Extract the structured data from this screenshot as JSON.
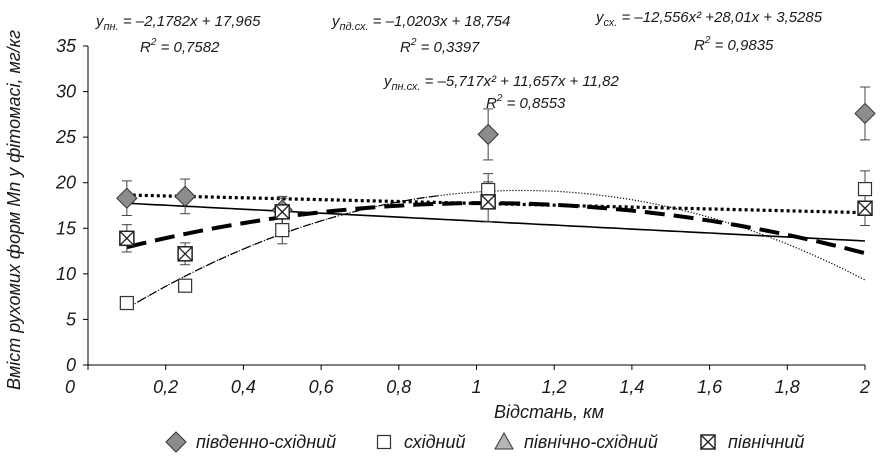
{
  "chart_data": {
    "type": "scatter",
    "xlabel": "Відстань, км",
    "ylabel": "Вміст рухомих форм Mn у фітомасі, мг/кг",
    "xlim": [
      0,
      2
    ],
    "ylim": [
      0,
      35
    ],
    "x_ticks": [
      "0",
      "0,2",
      "0,4",
      "0,6",
      "0,8",
      "1",
      "1,2",
      "1,4",
      "1,6",
      "1,8",
      "2"
    ],
    "y_ticks": [
      "0",
      "5",
      "10",
      "15",
      "20",
      "25",
      "30",
      "35"
    ],
    "grid": false,
    "legend_position": "bottom",
    "series": [
      {
        "name": "південно-східний",
        "marker": "diamond",
        "color": "#8c8c8c",
        "x": [
          0.1,
          0.25,
          0.5,
          1.03,
          2.0
        ],
        "y": [
          18.3,
          18.5,
          17.0,
          25.3,
          27.6
        ],
        "err": [
          1.9,
          1.9,
          1.5,
          2.8,
          2.9
        ]
      },
      {
        "name": "східний",
        "marker": "square",
        "color": "#ffffff",
        "x": [
          0.1,
          0.25,
          0.5,
          1.03,
          2.0
        ],
        "y": [
          6.8,
          8.7,
          14.8,
          19.2,
          19.3
        ],
        "err": [
          0.5,
          0.6,
          1.5,
          1.8,
          2.0
        ]
      },
      {
        "name": "північно-східний",
        "marker": "triangle",
        "color": "#b5b5b5",
        "x": [],
        "y": [],
        "err": []
      },
      {
        "name": "північний",
        "marker": "boxx",
        "color": "#ffffff",
        "x": [
          0.1,
          0.25,
          0.5,
          1.03,
          2.0
        ],
        "y": [
          13.9,
          12.2,
          16.8,
          17.9,
          17.2
        ],
        "err": [
          1.5,
          1.2,
          1.5,
          2.2,
          1.9
        ]
      }
    ],
    "trendlines": [
      {
        "kind": "linear",
        "a": -2.1782,
        "b": 17.965,
        "style": "solid",
        "width": 1.6,
        "color": "#000000"
      },
      {
        "kind": "linear",
        "a": -1.0203,
        "b": 18.754,
        "style": "dotted",
        "width": 3.2,
        "color": "#000000"
      },
      {
        "kind": "quadratic",
        "a": -12.556,
        "b": 28.01,
        "c": 3.5285,
        "style": "finedot",
        "width": 1.2,
        "color": "#000000"
      },
      {
        "kind": "quadratic",
        "a": -5.717,
        "b": 11.657,
        "c": 11.82,
        "style": "longdash",
        "width": 4,
        "color": "#000000"
      },
      {
        "kind": "quadratic",
        "a": -12.556,
        "b": 28.01,
        "c": 3.5285,
        "style": "shortdash",
        "width": 1.2,
        "color": "#000000",
        "xmax": 0.9
      }
    ],
    "annotations": [
      {
        "eq_main": "y",
        "eq_sub": "пн.",
        "eq_rest": " = –2,1782x + 17,965",
        "r2": "0,7582"
      },
      {
        "eq_main": "y",
        "eq_sub": "пд.сх.",
        "eq_rest": " = –1,0203x + 18,754",
        "r2": "0,3397"
      },
      {
        "eq_main": "y",
        "eq_sub": "сх.",
        "eq_rest": " = –12,556x² +28,01x + 3,5285",
        "r2": "0,9835"
      },
      {
        "eq_main": "y",
        "eq_sub": "пн.сх.",
        "eq_rest": " = –5,717x² + 11,657x + 11,82",
        "r2": "0,8553"
      }
    ]
  }
}
